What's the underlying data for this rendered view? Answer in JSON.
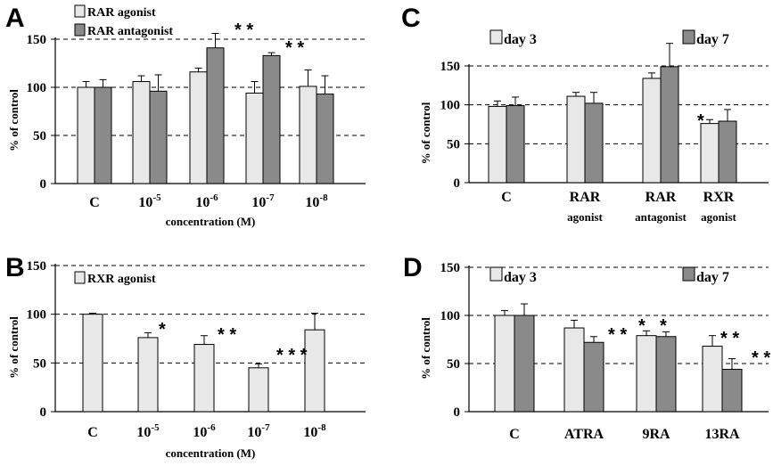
{
  "colors": {
    "light": "#e8e8e8",
    "dark": "#8a8a8a",
    "stroke": "#000000"
  },
  "chart_data": [
    {
      "id": "A",
      "letter": "A",
      "type": "bar",
      "categories": [
        "C",
        "10",
        "10",
        "10",
        "10"
      ],
      "category_exponents": [
        "",
        "-5",
        "-6",
        "-7",
        "-8"
      ],
      "xlabel": "concentration  (M)",
      "ylabel": "% of control",
      "ylim": [
        0,
        150
      ],
      "yticks": [
        "0",
        "50",
        "100",
        "150"
      ],
      "gridlines": [
        50,
        100,
        150
      ],
      "legend": [
        "RAR agonist",
        "RAR antagonist"
      ],
      "series": [
        {
          "name": "RAR agonist",
          "color": "#e8e8e8",
          "values": [
            100,
            106,
            116,
            94,
            101
          ],
          "errors": [
            6,
            6,
            4,
            12,
            17
          ]
        },
        {
          "name": "RAR antagonist",
          "color": "#8a8a8a",
          "values": [
            100,
            96,
            141,
            133,
            93
          ],
          "errors": [
            8,
            17,
            15,
            3,
            19
          ]
        }
      ],
      "annotations": [
        {
          "text": "* *",
          "category": 2
        },
        {
          "text": "* *",
          "category": 3
        }
      ]
    },
    {
      "id": "B",
      "letter": "B",
      "type": "bar",
      "categories": [
        "C",
        "10",
        "10",
        "10",
        "10"
      ],
      "category_exponents": [
        "",
        "-5",
        "-6",
        "-7",
        "-8"
      ],
      "xlabel": "concentration  (M)",
      "ylabel": "% of control",
      "ylim": [
        0,
        150
      ],
      "yticks": [
        "0",
        "50",
        "100",
        "150"
      ],
      "gridlines": [
        50,
        100,
        150
      ],
      "legend": [
        "RXR agonist"
      ],
      "series": [
        {
          "name": "RXR agonist",
          "color": "#e8e8e8",
          "values": [
            100,
            76,
            69,
            45,
            84
          ],
          "errors": [
            1,
            5,
            9,
            4,
            17
          ]
        }
      ],
      "annotations": [
        {
          "text": "*",
          "category": 1
        },
        {
          "text": "* *",
          "category": 2
        },
        {
          "text": "* * *",
          "category": 3
        }
      ]
    },
    {
      "id": "C",
      "letter": "C",
      "type": "bar",
      "categories": [
        "C",
        "RAR",
        "RAR",
        "RXR"
      ],
      "category_lines2": [
        "",
        "agonist",
        "antagonist",
        "agonist"
      ],
      "xlabel": "",
      "ylabel": "% of control",
      "ylim": [
        0,
        150
      ],
      "yticks": [
        "0",
        "50",
        "100",
        "150"
      ],
      "gridlines": [
        50,
        100,
        150
      ],
      "legend": [
        "day 3",
        "day 7"
      ],
      "series": [
        {
          "name": "day 3",
          "color": "#e8e8e8",
          "values": [
            98,
            111,
            134,
            76
          ],
          "errors": [
            7,
            5,
            7,
            5
          ]
        },
        {
          "name": "day 7",
          "color": "#8a8a8a",
          "values": [
            99,
            102,
            149,
            79
          ],
          "errors": [
            11,
            14,
            30,
            15
          ]
        }
      ],
      "annotations": [
        {
          "text": "*",
          "category": 3
        }
      ]
    },
    {
      "id": "D",
      "letter": "D",
      "type": "bar",
      "categories": [
        "C",
        "ATRA",
        "9RA",
        "13RA"
      ],
      "xlabel": "",
      "ylabel": "% of control",
      "ylim": [
        0,
        150
      ],
      "yticks": [
        "0",
        "50",
        "100",
        "150"
      ],
      "gridlines": [
        50,
        100,
        150
      ],
      "legend": [
        "day 3",
        "day 7"
      ],
      "series": [
        {
          "name": "day 3",
          "color": "#e8e8e8",
          "values": [
            100,
            87,
            79,
            68
          ],
          "errors": [
            5,
            8,
            5,
            11
          ]
        },
        {
          "name": "day 7",
          "color": "#8a8a8a",
          "values": [
            100,
            72,
            78,
            44
          ],
          "errors": [
            12,
            6,
            5,
            11
          ]
        }
      ],
      "annotations": [
        {
          "text": "* *",
          "category": 1
        },
        {
          "text": "*",
          "category": 2
        },
        {
          "text": "*",
          "category": 2
        },
        {
          "text": "* *",
          "category": 3
        },
        {
          "text": "* * *",
          "category": 3
        }
      ]
    }
  ]
}
